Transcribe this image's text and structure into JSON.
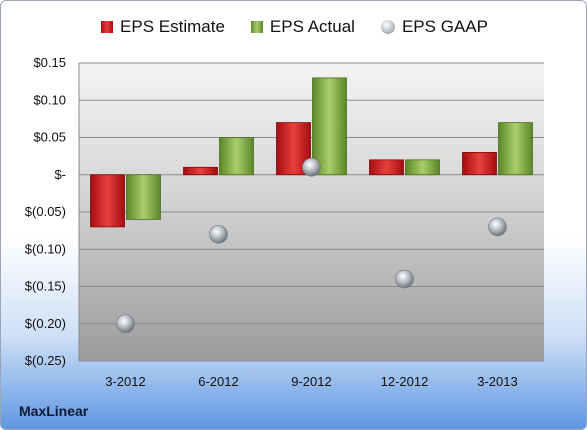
{
  "brand": "MaxLinear",
  "chart_data": {
    "type": "bar",
    "categories": [
      "3-2012",
      "6-2012",
      "9-2012",
      "12-2012",
      "3-2013"
    ],
    "series": [
      {
        "name": "EPS Estimate",
        "kind": "bar",
        "color": "#d0242a",
        "values": [
          -0.07,
          0.01,
          0.07,
          0.02,
          0.03
        ]
      },
      {
        "name": "EPS Actual",
        "kind": "bar",
        "color": "#8db653",
        "values": [
          -0.06,
          0.05,
          0.13,
          0.02,
          0.07
        ]
      },
      {
        "name": "EPS GAAP",
        "kind": "marker",
        "color": "#a9aeb6",
        "values": [
          -0.2,
          -0.08,
          0.01,
          -0.14,
          -0.07
        ]
      }
    ],
    "ylim": [
      -0.25,
      0.15
    ],
    "yticks": [
      0.15,
      0.1,
      0.05,
      0,
      -0.05,
      -0.1,
      -0.15,
      -0.2,
      -0.25
    ],
    "ytick_labels": [
      "$0.15",
      "$0.10",
      "$0.05",
      "$-",
      "$(0.05)",
      "$(0.10)",
      "$(0.15)",
      "$(0.20)",
      "$(0.25)"
    ],
    "grid": true,
    "legend": "top"
  }
}
